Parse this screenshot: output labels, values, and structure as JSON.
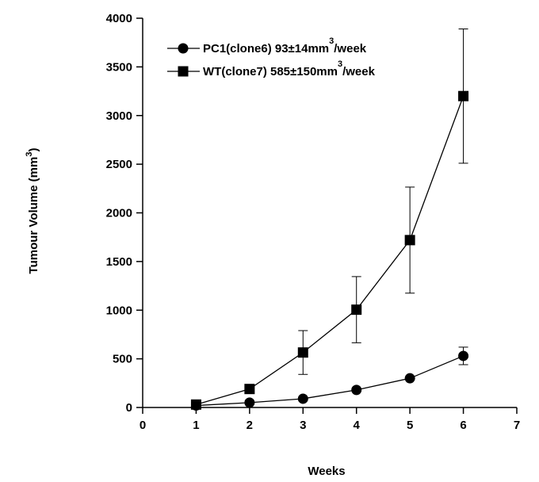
{
  "chart_data": {
    "type": "line",
    "xlabel": "Weeks",
    "ylabel_main": "Tumour Volume (mm",
    "ylabel_sup": "3",
    "ylabel_end": ")",
    "xlim": [
      0,
      7
    ],
    "ylim": [
      0,
      4000
    ],
    "xticks": [
      0,
      1,
      2,
      3,
      4,
      5,
      6,
      7
    ],
    "yticks": [
      0,
      500,
      1000,
      1500,
      2000,
      2500,
      3000,
      3500,
      4000
    ],
    "grid": false,
    "legend_position": "top-left",
    "series": [
      {
        "name": "PC1(clone6) 93±14mm",
        "name_sup": "3",
        "name_end": "/week",
        "marker": "circle",
        "x": [
          1,
          2,
          3,
          4,
          5,
          6
        ],
        "y": [
          20,
          50,
          90,
          180,
          300,
          530
        ],
        "err": [
          0,
          0,
          0,
          0,
          0,
          90
        ]
      },
      {
        "name": "WT(clone7) 585±150mm",
        "name_sup": "3",
        "name_end": "/week",
        "marker": "square",
        "x": [
          1,
          2,
          3,
          4,
          5,
          6
        ],
        "y": [
          30,
          190,
          565,
          1005,
          1720,
          3200
        ],
        "err": [
          0,
          0,
          225,
          340,
          545,
          690
        ]
      }
    ]
  }
}
